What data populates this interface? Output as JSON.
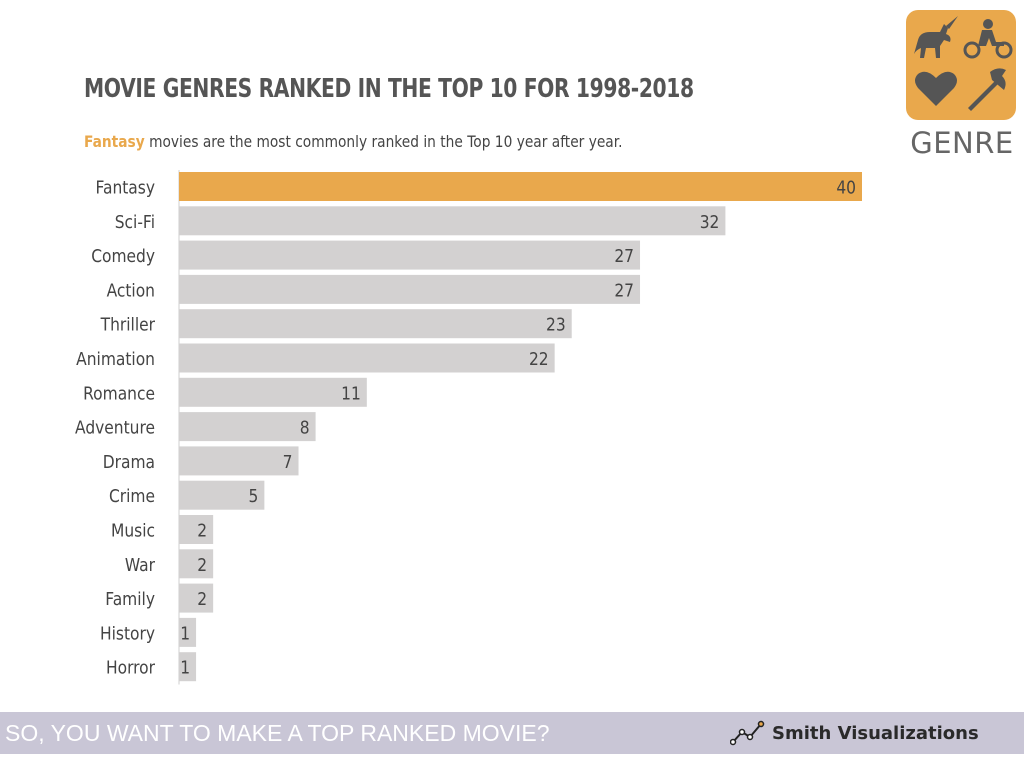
{
  "title": "MOVIE GENRES RANKED IN THE TOP 10 FOR 1998-2018",
  "subtitle": {
    "highlight": "Fantasy",
    "text": " movies are the most commonly ranked in the Top 10 year after year."
  },
  "badge": {
    "label": "GENRE",
    "icons": [
      "unicorn-icon",
      "motorcycle-icon",
      "heart-icon",
      "axe-icon"
    ]
  },
  "chart_data": {
    "type": "bar",
    "orientation": "horizontal",
    "categories": [
      "Fantasy",
      "Sci-Fi",
      "Comedy",
      "Action",
      "Thriller",
      "Animation",
      "Romance",
      "Adventure",
      "Drama",
      "Crime",
      "Music",
      "War",
      "Family",
      "History",
      "Horror"
    ],
    "values": [
      40,
      32,
      27,
      27,
      23,
      22,
      11,
      8,
      7,
      5,
      2,
      2,
      2,
      1,
      1
    ],
    "highlight_index": 0,
    "xlim": [
      0,
      40
    ],
    "grid": false,
    "legend": "none"
  },
  "colors": {
    "highlight": "#e9a84c",
    "bar": "#d3d1d1",
    "footer": "#c9c6d6"
  },
  "footer": {
    "text": "SO, YOU WANT TO MAKE A TOP RANKED MOVIE?",
    "brand": "Smith Visualizations",
    "brand_icon": "line-chart-icon"
  }
}
